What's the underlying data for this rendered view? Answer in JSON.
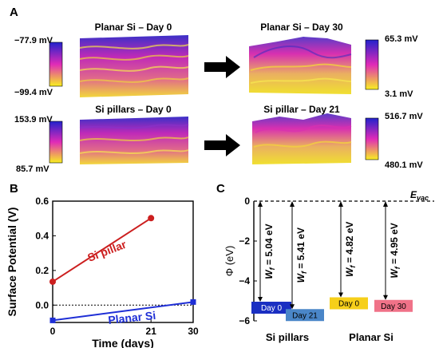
{
  "panels": {
    "a": "A",
    "b": "B",
    "c": "C"
  },
  "maps": [
    {
      "title": "Planar Si – Day 0",
      "cb_max": "−77.9 mV",
      "cb_min": "−99.4 mV"
    },
    {
      "title": "Planar Si – Day 30",
      "cb_max": "65.3 mV",
      "cb_min": "3.1 mV"
    },
    {
      "title": "Si pillars – Day 0",
      "cb_max": "153.9 mV",
      "cb_min": "85.7 mV"
    },
    {
      "title": "Si pillar – Day 21",
      "cb_max": "516.7 mV",
      "cb_min": "480.1 mV"
    }
  ],
  "colors": {
    "map_top": "#2a2ad0",
    "map_mid": "#d826b8",
    "map_bottom": "#f0e020",
    "si_pillar": "#cc1f1f",
    "planar_si": "#1f2fd6",
    "bar_dark_blue": "#1a2fc2",
    "bar_light_blue": "#4a86c8",
    "bar_yellow": "#f6cf1a",
    "bar_pink": "#f07288"
  },
  "chart_data": [
    {
      "type": "line",
      "xlabel": "Time (days)",
      "ylabel": "Surface Potential (V)",
      "xlim": [
        0,
        30
      ],
      "ylim": [
        -0.1,
        0.6
      ],
      "xticks": [
        "0",
        "21",
        "30"
      ],
      "yticks": [
        "0.0",
        "0.2",
        "0.4",
        "0.6"
      ],
      "reference_line_y": 0.0,
      "series": [
        {
          "name": "Si pillar",
          "x": [
            0,
            21
          ],
          "y": [
            0.135,
            0.502
          ]
        },
        {
          "name": "Planar Si",
          "x": [
            0,
            30
          ],
          "y": [
            -0.088,
            0.018
          ]
        }
      ]
    },
    {
      "type": "bar",
      "ylabel": "Φ (eV)",
      "ylim": [
        -6,
        0
      ],
      "yticks": [
        "0",
        "−2",
        "−4",
        "−6"
      ],
      "reference_label": "E",
      "reference_label_sub": "vac",
      "groups": [
        "Si pillars",
        "Planar Si"
      ],
      "bars": [
        {
          "label": "Day 0",
          "group": "Si pillars",
          "value": -5.04,
          "wf_label": "5.04 eV"
        },
        {
          "label": "Day 21",
          "group": "Si pillars",
          "value": -5.41,
          "wf_label": "5.41 eV"
        },
        {
          "label": "Day 0",
          "group": "Planar Si",
          "value": -4.82,
          "wf_label": "4.82 eV"
        },
        {
          "label": "Day 30",
          "group": "Planar Si",
          "value": -4.95,
          "wf_label": "4.95 eV"
        }
      ],
      "wf_symbol": "W",
      "wf_sub": "f"
    }
  ]
}
